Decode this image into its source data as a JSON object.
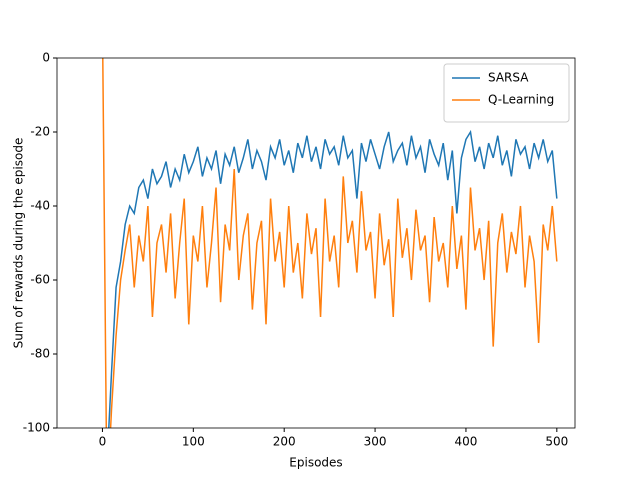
{
  "chart_data": {
    "type": "line",
    "xlabel": "Episodes",
    "ylabel": "Sum of rewards during the episode",
    "x": [
      0,
      5,
      10,
      15,
      20,
      25,
      30,
      35,
      40,
      45,
      50,
      55,
      60,
      65,
      70,
      75,
      80,
      85,
      90,
      95,
      100,
      105,
      110,
      115,
      120,
      125,
      130,
      135,
      140,
      145,
      150,
      155,
      160,
      165,
      170,
      175,
      180,
      185,
      190,
      195,
      200,
      205,
      210,
      215,
      220,
      225,
      230,
      235,
      240,
      245,
      250,
      255,
      260,
      265,
      270,
      275,
      280,
      285,
      290,
      295,
      300,
      305,
      310,
      315,
      320,
      325,
      330,
      335,
      340,
      345,
      350,
      355,
      360,
      365,
      370,
      375,
      380,
      385,
      390,
      395,
      400,
      405,
      410,
      415,
      420,
      425,
      430,
      435,
      440,
      445,
      450,
      455,
      460,
      465,
      470,
      475,
      480,
      485,
      490,
      495,
      500
    ],
    "series": [
      {
        "name": "SARSA",
        "color": "#1f77b4",
        "values": [
          -120,
          -110,
          -85,
          -62,
          -55,
          -45,
          -40,
          -42,
          -35,
          -33,
          -38,
          -30,
          -34,
          -32,
          -28,
          -35,
          -30,
          -33,
          -26,
          -31,
          -28,
          -24,
          -32,
          -27,
          -30,
          -25,
          -34,
          -26,
          -29,
          -24,
          -31,
          -27,
          -22,
          -30,
          -25,
          -28,
          -33,
          -24,
          -27,
          -22,
          -29,
          -25,
          -31,
          -23,
          -27,
          -21,
          -28,
          -24,
          -30,
          -22,
          -26,
          -24,
          -29,
          -21,
          -27,
          -25,
          -38,
          -23,
          -28,
          -22,
          -26,
          -30,
          -24,
          -20,
          -28,
          -25,
          -23,
          -29,
          -21,
          -27,
          -24,
          -31,
          -22,
          -26,
          -29,
          -23,
          -33,
          -25,
          -42,
          -27,
          -22,
          -20,
          -28,
          -24,
          -30,
          -23,
          -27,
          -21,
          -29,
          -25,
          -32,
          -22,
          -26,
          -24,
          -30,
          -23,
          -27,
          -22,
          -28,
          -25,
          -38
        ]
      },
      {
        "name": "Q-Learning",
        "color": "#ff7f0e",
        "values": [
          10,
          -120,
          -95,
          -75,
          -60,
          -52,
          -45,
          -62,
          -48,
          -55,
          -40,
          -70,
          -50,
          -45,
          -58,
          -42,
          -65,
          -50,
          -38,
          -72,
          -48,
          -55,
          -40,
          -62,
          -50,
          -35,
          -66,
          -45,
          -52,
          -30,
          -60,
          -48,
          -42,
          -68,
          -50,
          -44,
          -72,
          -38,
          -55,
          -47,
          -62,
          -40,
          -58,
          -50,
          -65,
          -42,
          -53,
          -46,
          -70,
          -38,
          -55,
          -48,
          -62,
          -32,
          -50,
          -44,
          -58,
          -36,
          -52,
          -47,
          -65,
          -42,
          -56,
          -49,
          -70,
          -38,
          -54,
          -46,
          -60,
          -41,
          -52,
          -48,
          -66,
          -43,
          -55,
          -50,
          -62,
          -40,
          -57,
          -48,
          -68,
          -35,
          -52,
          -46,
          -60,
          -44,
          -78,
          -50,
          -42,
          -58,
          -47,
          -53,
          -40,
          -62,
          -48,
          -55,
          -77,
          -45,
          -52,
          -40,
          -55
        ]
      }
    ],
    "xlim": [
      -50,
      520
    ],
    "xticks": [
      0,
      100,
      200,
      300,
      400,
      500
    ],
    "ylim": [
      -100,
      0
    ],
    "yticks": [
      -100,
      -80,
      -60,
      -40,
      -20,
      0
    ],
    "legend": "upper right"
  }
}
